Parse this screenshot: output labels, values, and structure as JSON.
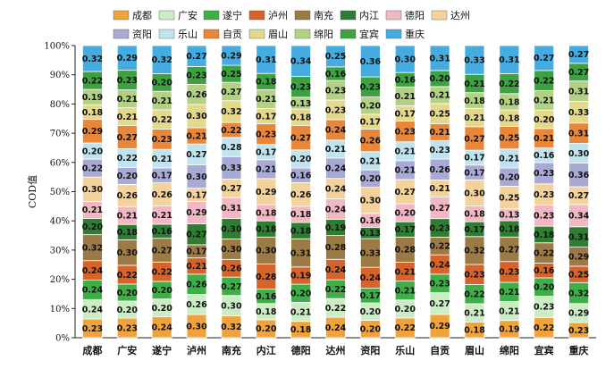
{
  "chart_data": {
    "type": "bar",
    "stacked": true,
    "normalized": true,
    "title": "",
    "xlabel": "",
    "ylabel": "COD值",
    "ylim": [
      0,
      100
    ],
    "yticks": [
      "0%",
      "10%",
      "20%",
      "30%",
      "40%",
      "50%",
      "60%",
      "70%",
      "80%",
      "90%",
      "100%"
    ],
    "legend_position": "top",
    "categories": [
      "成都",
      "广安",
      "遂宁",
      "泸州",
      "南充",
      "内江",
      "德阳",
      "达州",
      "资阳",
      "乐山",
      "自贡",
      "眉山",
      "绵阳",
      "宜宾",
      "重庆"
    ],
    "series": [
      {
        "name": "成都",
        "color": "#f0a23c",
        "values": [
          0.23,
          0.23,
          0.24,
          0.3,
          0.32,
          0.2,
          0.18,
          0.24,
          0.2,
          0.22,
          0.29,
          0.18,
          0.19,
          0.22,
          0.23
        ]
      },
      {
        "name": "广安",
        "color": "#ccecc5",
        "values": [
          0.24,
          0.2,
          0.2,
          0.26,
          0.3,
          0.18,
          0.21,
          0.22,
          0.2,
          0.2,
          0.27,
          0.21,
          0.21,
          0.23,
          0.29
        ]
      },
      {
        "name": "遂宁",
        "color": "#3fae49",
        "values": [
          0.24,
          0.2,
          0.2,
          0.26,
          0.27,
          0.16,
          0.2,
          0.22,
          0.17,
          0.21,
          0.23,
          0.22,
          0.21,
          0.2,
          0.32
        ]
      },
      {
        "name": "泸州",
        "color": "#d6632a",
        "values": [
          0.24,
          0.22,
          0.22,
          0.21,
          0.26,
          0.28,
          0.19,
          0.24,
          0.24,
          0.21,
          0.24,
          0.23,
          0.23,
          0.16,
          0.25
        ]
      },
      {
        "name": "南充",
        "color": "#9b7a45",
        "values": [
          0.32,
          0.3,
          0.27,
          0.17,
          0.3,
          0.3,
          0.31,
          0.28,
          0.33,
          0.28,
          0.22,
          0.32,
          0.27,
          0.22,
          0.29
        ]
      },
      {
        "name": "内江",
        "color": "#2f7d32",
        "values": [
          0.2,
          0.18,
          0.16,
          0.27,
          0.3,
          0.18,
          0.18,
          0.19,
          0.13,
          0.17,
          0.23,
          0.17,
          0.18,
          0.18,
          0.31
        ]
      },
      {
        "name": "德阳",
        "color": "#f1b7c2",
        "values": [
          0.21,
          0.21,
          0.21,
          0.29,
          0.31,
          0.18,
          0.18,
          0.24,
          0.16,
          0.2,
          0.27,
          0.18,
          0.13,
          0.23,
          0.34
        ]
      },
      {
        "name": "达州",
        "color": "#f3d29b",
        "values": [
          0.3,
          0.26,
          0.26,
          0.17,
          0.27,
          0.29,
          0.26,
          0.24,
          0.3,
          0.27,
          0.21,
          0.3,
          0.25,
          0.23,
          0.27
        ]
      },
      {
        "name": "资阳",
        "color": "#a9a9d6",
        "values": [
          0.22,
          0.2,
          0.17,
          0.3,
          0.33,
          0.21,
          0.16,
          0.24,
          0.2,
          0.21,
          0.26,
          0.17,
          0.2,
          0.23,
          0.36
        ]
      },
      {
        "name": "乐山",
        "color": "#bfe4ef",
        "values": [
          0.2,
          0.22,
          0.21,
          0.27,
          0.28,
          0.17,
          0.2,
          0.21,
          0.21,
          0.21,
          0.23,
          0.17,
          0.21,
          0.16,
          0.3
        ]
      },
      {
        "name": "自贡",
        "color": "#e8863a",
        "values": [
          0.29,
          0.27,
          0.23,
          0.21,
          0.22,
          0.23,
          0.27,
          0.24,
          0.26,
          0.23,
          0.21,
          0.27,
          0.25,
          0.21,
          0.31
        ]
      },
      {
        "name": "眉山",
        "color": "#e3d88b",
        "values": [
          0.18,
          0.21,
          0.22,
          0.3,
          0.32,
          0.17,
          0.18,
          0.23,
          0.17,
          0.17,
          0.25,
          0.21,
          0.18,
          0.2,
          0.33
        ]
      },
      {
        "name": "绵阳",
        "color": "#b2d184",
        "values": [
          0.19,
          0.21,
          0.21,
          0.26,
          0.27,
          0.21,
          0.13,
          0.23,
          0.2,
          0.21,
          0.21,
          0.18,
          0.18,
          0.21,
          0.31
        ]
      },
      {
        "name": "宜宾",
        "color": "#3da142",
        "values": [
          0.22,
          0.23,
          0.2,
          0.23,
          0.25,
          0.18,
          0.23,
          0.16,
          0.23,
          0.16,
          0.2,
          0.21,
          0.22,
          0.22,
          0.27
        ]
      },
      {
        "name": "重庆",
        "color": "#46acdf",
        "values": [
          0.32,
          0.29,
          0.32,
          0.27,
          0.29,
          0.31,
          0.34,
          0.25,
          0.36,
          0.3,
          0.31,
          0.33,
          0.31,
          0.27,
          0.27
        ]
      }
    ]
  }
}
